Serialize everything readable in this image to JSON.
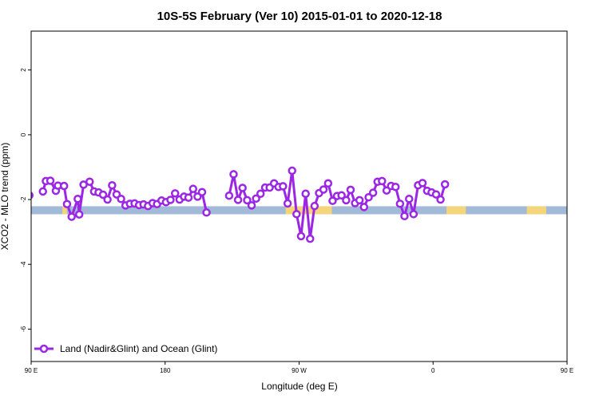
{
  "chart_data": {
    "type": "line",
    "title": "10S-5S February (Ver 10)   2015-01-01 to 2020-12-18",
    "xlabel": "Longitude (deg E)",
    "ylabel": "XCO2 - MLO trend (ppm)",
    "xlim": [
      90,
      450
    ],
    "ylim": [
      -7,
      3.2
    ],
    "x_ticks": [
      {
        "value": 90,
        "label": "90 E"
      },
      {
        "value": 180,
        "label": "180"
      },
      {
        "value": 270,
        "label": "90 W"
      },
      {
        "value": 360,
        "label": "0"
      },
      {
        "value": 450,
        "label": "90 E"
      },
      {
        "value": 540,
        "label": "180"
      }
    ],
    "y_ticks": [
      {
        "value": 2,
        "label": "2"
      },
      {
        "value": 0,
        "label": "0"
      },
      {
        "value": -2,
        "label": "-2"
      },
      {
        "value": -4,
        "label": "-4"
      },
      {
        "value": -6,
        "label": "-6"
      }
    ],
    "legend": {
      "position": "bottom-left",
      "label": "Land (Nadir&Glint) and Ocean (Glint)"
    },
    "colors": {
      "series": "#9b26e4",
      "ocean_band": "#a2b9d8",
      "land_band": "#f5d57a"
    },
    "surface_band": {
      "y_center": -2.33,
      "land_segments": [
        [
          111,
          114
        ],
        [
          261,
          292
        ],
        [
          369,
          382
        ],
        [
          423,
          436
        ]
      ]
    },
    "series": [
      {
        "name": "Land (Nadir&Glint) and Ocean (Glint)",
        "points": [
          [
            88.8,
            -1.87
          ],
          [
            97.9,
            -1.75
          ],
          [
            99.9,
            -1.43
          ],
          [
            102.9,
            -1.42
          ],
          [
            106.6,
            -1.73
          ],
          [
            108.0,
            -1.57
          ],
          [
            112.1,
            -1.58
          ],
          [
            114.1,
            -2.14
          ],
          [
            117.2,
            -2.53
          ],
          [
            121.3,
            -1.98
          ],
          [
            122.3,
            -2.46
          ],
          [
            125.2,
            -1.54
          ],
          [
            129.3,
            -1.45
          ],
          [
            132.3,
            -1.75
          ],
          [
            135.3,
            -1.78
          ],
          [
            138.3,
            -1.85
          ],
          [
            141.3,
            -2.0
          ],
          [
            144.4,
            -1.56
          ],
          [
            147.4,
            -1.84
          ],
          [
            150.4,
            -1.98
          ],
          [
            153.4,
            -2.18
          ],
          [
            156.4,
            -2.13
          ],
          [
            159.5,
            -2.12
          ],
          [
            162.5,
            -2.17
          ],
          [
            165.5,
            -2.15
          ],
          [
            168.5,
            -2.2
          ],
          [
            171.6,
            -2.11
          ],
          [
            174.6,
            -2.14
          ],
          [
            177.6,
            -2.03
          ],
          [
            180.6,
            -2.08
          ],
          [
            183.6,
            -2.01
          ],
          [
            186.7,
            -1.81
          ],
          [
            189.7,
            -2.0
          ],
          [
            192.7,
            -1.91
          ],
          [
            195.7,
            -1.94
          ],
          [
            198.8,
            -1.67
          ],
          [
            201.8,
            -1.91
          ],
          [
            204.8,
            -1.77
          ],
          [
            207.8,
            -2.4
          ],
          [
            223.0,
            -1.88
          ],
          [
            226.0,
            -1.22
          ],
          [
            229.0,
            -2.01
          ],
          [
            232.0,
            -1.64
          ],
          [
            235.1,
            -2.02
          ],
          [
            238.1,
            -2.18
          ],
          [
            241.1,
            -1.97
          ],
          [
            244.1,
            -1.82
          ],
          [
            247.2,
            -1.63
          ],
          [
            250.2,
            -1.63
          ],
          [
            253.2,
            -1.5
          ],
          [
            256.2,
            -1.61
          ],
          [
            259.2,
            -1.59
          ],
          [
            262.3,
            -2.12
          ],
          [
            265.3,
            -1.11
          ],
          [
            268.3,
            -2.45
          ],
          [
            271.3,
            -3.13
          ],
          [
            274.4,
            -1.82
          ],
          [
            277.4,
            -3.21
          ],
          [
            280.4,
            -2.2
          ],
          [
            283.4,
            -1.8
          ],
          [
            286.4,
            -1.69
          ],
          [
            289.5,
            -1.5
          ],
          [
            292.5,
            -2.04
          ],
          [
            295.5,
            -1.89
          ],
          [
            298.5,
            -1.87
          ],
          [
            301.6,
            -2.02
          ],
          [
            304.6,
            -1.7
          ],
          [
            307.6,
            -2.11
          ],
          [
            310.6,
            -2.02
          ],
          [
            313.6,
            -2.23
          ],
          [
            316.7,
            -1.93
          ],
          [
            319.7,
            -1.79
          ],
          [
            322.7,
            -1.45
          ],
          [
            325.7,
            -1.43
          ],
          [
            328.8,
            -1.72
          ],
          [
            331.8,
            -1.58
          ],
          [
            334.8,
            -1.61
          ],
          [
            337.8,
            -2.13
          ],
          [
            340.8,
            -2.51
          ],
          [
            343.9,
            -1.98
          ],
          [
            346.9,
            -2.45
          ],
          [
            349.9,
            -1.56
          ],
          [
            352.9,
            -1.49
          ],
          [
            356.0,
            -1.73
          ],
          [
            359.0,
            -1.78
          ],
          [
            362.0,
            -1.84
          ],
          [
            365.0,
            -2.0
          ],
          [
            368.0,
            -1.53
          ]
        ]
      }
    ]
  }
}
